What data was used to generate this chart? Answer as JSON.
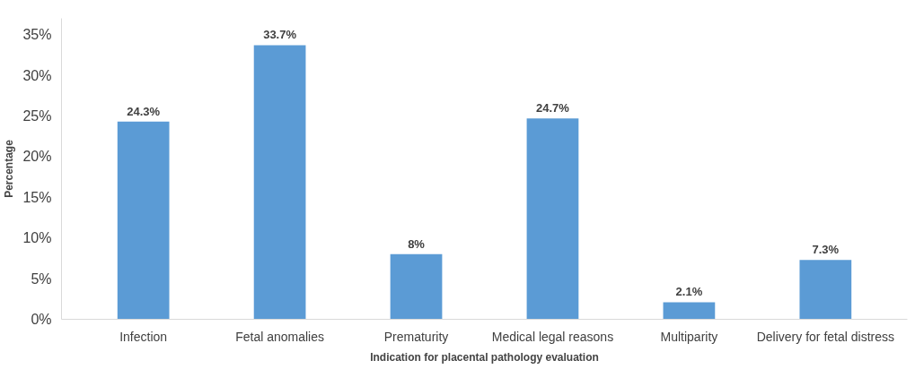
{
  "chart_data": {
    "type": "bar",
    "xlabel": "Indication for placental pathology evaluation",
    "ylabel": "Percentage",
    "categories": [
      "Infection",
      "Fetal anomalies",
      "Prematurity",
      "Medical legal reasons",
      "Multiparity",
      "Delivery for fetal distress"
    ],
    "values": [
      24.3,
      33.7,
      8,
      24.7,
      2.1,
      7.3
    ],
    "value_labels": [
      "24.3%",
      "33.7%",
      "8%",
      "24.7%",
      "2.1%",
      "7.3%"
    ],
    "color": "#5b9bd5",
    "ylim": [
      0,
      37
    ],
    "yticks": [
      {
        "value": 0,
        "label": "0%"
      },
      {
        "value": 5,
        "label": "5%"
      },
      {
        "value": 10,
        "label": "10%"
      },
      {
        "value": 15,
        "label": "15%"
      },
      {
        "value": 20,
        "label": "20%"
      },
      {
        "value": 25,
        "label": "25%"
      },
      {
        "value": 30,
        "label": "30%"
      },
      {
        "value": 35,
        "label": "35%"
      }
    ],
    "grid": false
  }
}
